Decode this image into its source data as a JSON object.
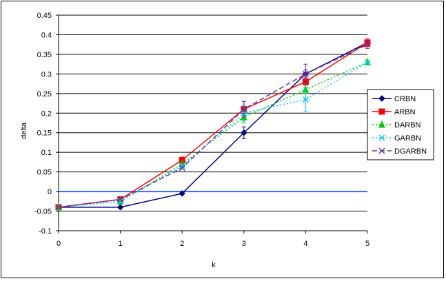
{
  "chart_data": {
    "type": "line",
    "title": "",
    "xlabel": "k",
    "ylabel": "delta",
    "x": [
      0,
      1,
      2,
      3,
      4,
      5
    ],
    "xlim": [
      0,
      5
    ],
    "ylim": [
      -0.1,
      0.45
    ],
    "ystep": 0.05,
    "y_tick_labels": [
      "-0.1",
      "-0.05",
      "0",
      "0.05",
      "0.1",
      "0.15",
      "0.2",
      "0.25",
      "0.3",
      "0.35",
      "0.4",
      "0.45"
    ],
    "x_tick_labels": [
      "0",
      "1",
      "2",
      "3",
      "4",
      "5"
    ],
    "grid": "horizontal",
    "legend_position": "right",
    "reference_line": {
      "y": 0,
      "color": "#3366ff"
    },
    "series": [
      {
        "name": "CRBN",
        "color": "#000080",
        "dash": "solid",
        "marker": "diamond",
        "values": [
          -0.04,
          -0.04,
          -0.005,
          0.15,
          0.3,
          0.38
        ],
        "errors": [
          0,
          0,
          0,
          0.015,
          0.01,
          0
        ]
      },
      {
        "name": "ARBN",
        "color": "#ff0000",
        "dash": "solid",
        "marker": "square",
        "values": [
          -0.04,
          -0.02,
          0.08,
          0.21,
          0.28,
          0.38
        ],
        "errors": [
          0,
          0,
          0.008,
          0.02,
          0.015,
          0.01
        ]
      },
      {
        "name": "DARBN",
        "color": "#00cc00",
        "dash": "dotted",
        "marker": "triangle",
        "values": [
          -0.04,
          -0.025,
          0.07,
          0.19,
          0.26,
          0.33
        ],
        "errors": [
          0,
          0,
          0,
          0.015,
          0.01,
          0
        ]
      },
      {
        "name": "GARBN",
        "color": "#00ccff",
        "dash": "dotted",
        "marker": "x",
        "values": [
          -0.04,
          -0.025,
          0.065,
          0.2,
          0.235,
          0.33
        ],
        "errors": [
          0,
          0,
          0,
          0.02,
          0.03,
          0
        ]
      },
      {
        "name": "DGARBN",
        "color": "#7030a0",
        "dash": "dashed",
        "marker": "x",
        "values": [
          -0.04,
          -0.02,
          0.06,
          0.21,
          0.3,
          0.375
        ],
        "errors": [
          0,
          0,
          0,
          0.02,
          0.025,
          0.01
        ]
      }
    ]
  }
}
